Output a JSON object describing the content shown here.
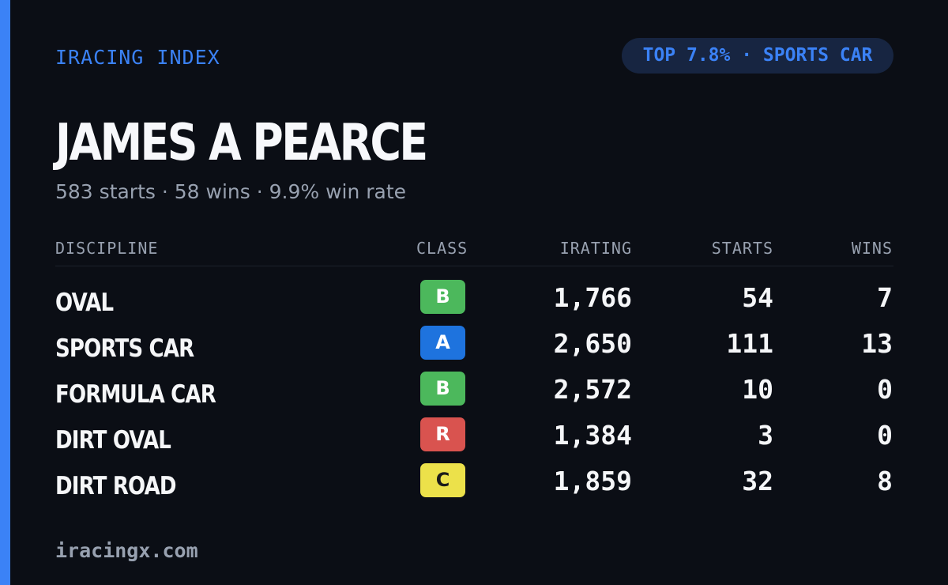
{
  "brand": "IRACING INDEX",
  "rank_pill": "TOP 7.8% · SPORTS CAR",
  "driver": {
    "name": "JAMES A PEARCE",
    "summary": "583 starts · 58 wins · 9.9% win rate"
  },
  "table": {
    "headers": {
      "discipline": "DISCIPLINE",
      "class": "CLASS",
      "irating": "IRATING",
      "starts": "STARTS",
      "wins": "WINS"
    },
    "rows": [
      {
        "discipline": "OVAL",
        "class": "B",
        "class_color": "#4cb85c",
        "class_text_color": "#ffffff",
        "irating": "1,766",
        "starts": "54",
        "wins": "7"
      },
      {
        "discipline": "SPORTS CAR",
        "class": "A",
        "class_color": "#1e73de",
        "class_text_color": "#ffffff",
        "irating": "2,650",
        "starts": "111",
        "wins": "13"
      },
      {
        "discipline": "FORMULA CAR",
        "class": "B",
        "class_color": "#4cb85c",
        "class_text_color": "#ffffff",
        "irating": "2,572",
        "starts": "10",
        "wins": "0"
      },
      {
        "discipline": "DIRT OVAL",
        "class": "R",
        "class_color": "#d9534f",
        "class_text_color": "#ffffff",
        "irating": "1,384",
        "starts": "3",
        "wins": "0"
      },
      {
        "discipline": "DIRT ROAD",
        "class": "C",
        "class_color": "#ece14a",
        "class_text_color": "#1a1a1a",
        "irating": "1,859",
        "starts": "32",
        "wins": "8"
      }
    ]
  },
  "footer": "iracingx.com",
  "colors": {
    "background": "#0b0e15",
    "accent": "#3b82f6",
    "muted_text": "#98a1b0"
  }
}
